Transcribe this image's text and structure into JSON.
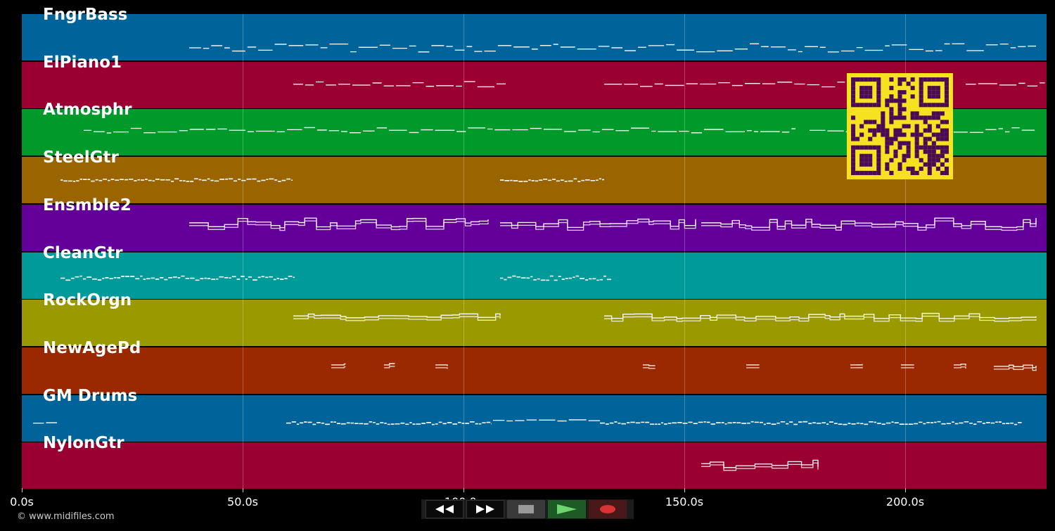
{
  "timeline": {
    "tracks": [
      {
        "name": "FngrBass",
        "color": "#00649a"
      },
      {
        "name": "ElPiano1",
        "color": "#9a0032"
      },
      {
        "name": "Atmosphr",
        "color": "#009a2a"
      },
      {
        "name": "SteelGtr",
        "color": "#9a6400"
      },
      {
        "name": "Ensmble2",
        "color": "#620099"
      },
      {
        "name": "CleanGtr",
        "color": "#009a9a"
      },
      {
        "name": "RockOrgn",
        "color": "#9a9a00"
      },
      {
        "name": "NewAgePd",
        "color": "#9a2800"
      },
      {
        "name": "GM Drums",
        "color": "#00649a"
      },
      {
        "name": "NylonGtr",
        "color": "#9a0032"
      }
    ],
    "axis": {
      "max_seconds": 232,
      "ticks": [
        {
          "label": "0.0s",
          "value": 0
        },
        {
          "label": "50.0s",
          "value": 50
        },
        {
          "label": "100.0s",
          "value": 100
        },
        {
          "label": "150.0s",
          "value": 150
        },
        {
          "label": "200.0s",
          "value": 200
        }
      ]
    }
  },
  "transport": {
    "rewind_icon": "rewind-icon",
    "fast_forward_icon": "fast-forward-icon",
    "stop_icon": "stop-icon",
    "play_icon": "play-icon",
    "record_icon": "record-icon"
  },
  "footer": {
    "copyright": "© www.midifiles.com"
  },
  "overlay": {
    "qr_icon": "qr-code-icon",
    "qr_color": "#f7e222",
    "qr_dark": "#4a0a55"
  }
}
